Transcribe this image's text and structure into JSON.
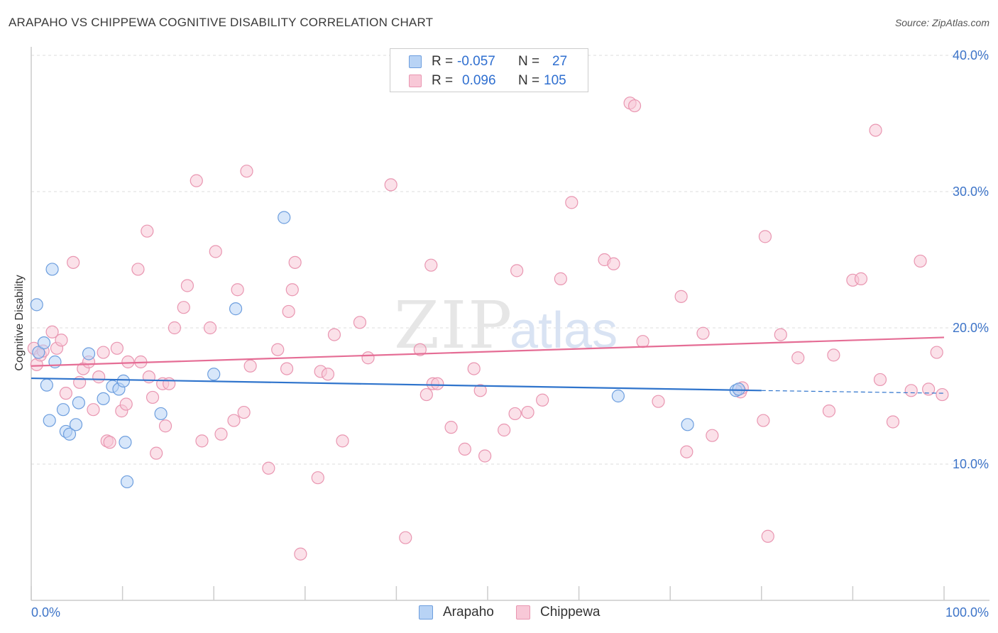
{
  "header": {
    "title": "ARAPAHO VS CHIPPEWA COGNITIVE DISABILITY CORRELATION CHART",
    "source": "Source: ZipAtlas.com"
  },
  "watermark": {
    "zip": "ZIP",
    "atlas": "atlas"
  },
  "legend": {
    "rows": [
      {
        "r_label": "R =",
        "r_value": "-0.057",
        "n_label": "N =",
        "n_value": "27"
      },
      {
        "r_label": "R =",
        "r_value": "0.096",
        "n_label": "N =",
        "n_value": "105"
      }
    ]
  },
  "bottom_legend": {
    "arapaho": "Arapaho",
    "chippewa": "Chippewa"
  },
  "colors": {
    "arapaho_fill": "#b8d3f5",
    "arapaho_stroke": "#6d9ede",
    "arapaho_line": "#2f74cc",
    "chippewa_fill": "#f8c8d7",
    "chippewa_stroke": "#e996b1",
    "chippewa_line": "#e56d95",
    "tick_label": "#3d74c8",
    "grid": "#dddddd"
  },
  "chart_data": {
    "type": "scatter",
    "title": "ARAPAHO VS CHIPPEWA COGNITIVE DISABILITY CORRELATION CHART",
    "xlabel": "",
    "ylabel": "Cognitive Disability",
    "xlim": [
      0,
      100
    ],
    "ylim": [
      0,
      40.5
    ],
    "x_tick_labels": [
      "0.0%",
      "100.0%"
    ],
    "y_ticks": [
      10,
      20,
      30,
      40
    ],
    "y_tick_labels": [
      "10.0%",
      "20.0%",
      "30.0%",
      "40.0%"
    ],
    "series": [
      {
        "name": "Arapaho",
        "R": -0.057,
        "N": 27,
        "trend": {
          "x": [
            0,
            80
          ],
          "y": [
            16.3,
            15.4
          ],
          "dashed_to_x": 100,
          "dashed_end_y": 15.2
        },
        "points": [
          [
            0.6,
            21.7
          ],
          [
            0.8,
            18.2
          ],
          [
            1.4,
            18.9
          ],
          [
            1.7,
            15.8
          ],
          [
            2.0,
            13.2
          ],
          [
            2.3,
            24.3
          ],
          [
            2.6,
            17.5
          ],
          [
            3.5,
            14.0
          ],
          [
            3.8,
            12.4
          ],
          [
            4.2,
            12.2
          ],
          [
            4.9,
            12.9
          ],
          [
            5.2,
            14.5
          ],
          [
            6.3,
            18.1
          ],
          [
            7.9,
            14.8
          ],
          [
            8.9,
            15.7
          ],
          [
            9.6,
            15.5
          ],
          [
            10.1,
            16.1
          ],
          [
            10.3,
            11.6
          ],
          [
            10.5,
            8.7
          ],
          [
            14.2,
            13.7
          ],
          [
            20.0,
            16.6
          ],
          [
            22.4,
            21.4
          ],
          [
            27.7,
            28.1
          ],
          [
            64.3,
            15.0
          ],
          [
            71.9,
            12.9
          ],
          [
            77.2,
            15.4
          ],
          [
            77.5,
            15.5
          ]
        ]
      },
      {
        "name": "Chippewa",
        "R": 0.096,
        "N": 105,
        "trend": {
          "x": [
            0,
            100
          ],
          "y": [
            17.2,
            19.3
          ]
        },
        "points": [
          [
            0.3,
            18.5
          ],
          [
            0.6,
            17.3
          ],
          [
            1.0,
            18.0
          ],
          [
            1.3,
            18.3
          ],
          [
            2.3,
            19.7
          ],
          [
            2.8,
            18.5
          ],
          [
            3.3,
            19.1
          ],
          [
            3.8,
            15.2
          ],
          [
            4.6,
            24.8
          ],
          [
            5.3,
            16.0
          ],
          [
            5.7,
            17.0
          ],
          [
            6.3,
            17.5
          ],
          [
            6.8,
            14.0
          ],
          [
            7.4,
            16.4
          ],
          [
            7.9,
            18.2
          ],
          [
            8.3,
            11.7
          ],
          [
            8.6,
            11.6
          ],
          [
            9.4,
            18.5
          ],
          [
            9.9,
            13.9
          ],
          [
            10.4,
            14.4
          ],
          [
            10.6,
            17.5
          ],
          [
            11.7,
            24.3
          ],
          [
            12.0,
            17.5
          ],
          [
            12.7,
            27.1
          ],
          [
            12.9,
            16.4
          ],
          [
            13.3,
            14.9
          ],
          [
            13.7,
            10.8
          ],
          [
            14.4,
            15.9
          ],
          [
            14.7,
            12.8
          ],
          [
            15.1,
            15.9
          ],
          [
            15.7,
            20.0
          ],
          [
            16.7,
            21.5
          ],
          [
            17.1,
            23.1
          ],
          [
            18.1,
            30.8
          ],
          [
            18.7,
            11.7
          ],
          [
            19.6,
            20.0
          ],
          [
            20.2,
            25.6
          ],
          [
            20.8,
            12.2
          ],
          [
            22.2,
            13.2
          ],
          [
            22.6,
            22.8
          ],
          [
            23.3,
            13.8
          ],
          [
            23.6,
            31.5
          ],
          [
            24.0,
            17.2
          ],
          [
            26.0,
            9.7
          ],
          [
            27.0,
            18.4
          ],
          [
            28.0,
            17.0
          ],
          [
            28.2,
            21.2
          ],
          [
            28.6,
            22.8
          ],
          [
            28.9,
            24.8
          ],
          [
            29.5,
            3.4
          ],
          [
            31.4,
            9.0
          ],
          [
            31.7,
            16.8
          ],
          [
            32.5,
            16.6
          ],
          [
            33.2,
            19.5
          ],
          [
            34.1,
            11.7
          ],
          [
            36.0,
            20.4
          ],
          [
            36.9,
            17.8
          ],
          [
            39.4,
            30.5
          ],
          [
            41.0,
            4.6
          ],
          [
            42.6,
            18.4
          ],
          [
            43.3,
            15.1
          ],
          [
            43.8,
            24.6
          ],
          [
            44.0,
            15.9
          ],
          [
            44.5,
            15.9
          ],
          [
            46.0,
            12.7
          ],
          [
            47.5,
            11.1
          ],
          [
            48.5,
            17.0
          ],
          [
            49.2,
            15.4
          ],
          [
            49.7,
            10.6
          ],
          [
            51.8,
            12.5
          ],
          [
            53.0,
            13.7
          ],
          [
            53.2,
            24.2
          ],
          [
            54.4,
            13.8
          ],
          [
            56.0,
            14.7
          ],
          [
            58.0,
            23.6
          ],
          [
            59.2,
            29.2
          ],
          [
            62.8,
            25.0
          ],
          [
            63.8,
            24.7
          ],
          [
            65.6,
            36.5
          ],
          [
            66.1,
            36.3
          ],
          [
            67.0,
            19.0
          ],
          [
            68.7,
            14.6
          ],
          [
            71.2,
            22.3
          ],
          [
            71.8,
            10.9
          ],
          [
            73.6,
            19.6
          ],
          [
            74.6,
            12.1
          ],
          [
            77.7,
            15.3
          ],
          [
            80.2,
            13.2
          ],
          [
            80.4,
            26.7
          ],
          [
            80.7,
            4.7
          ],
          [
            82.1,
            19.5
          ],
          [
            84.0,
            17.8
          ],
          [
            87.4,
            13.9
          ],
          [
            87.9,
            18.0
          ],
          [
            90.0,
            23.5
          ],
          [
            90.9,
            23.6
          ],
          [
            92.5,
            34.5
          ],
          [
            93.0,
            16.2
          ],
          [
            94.4,
            13.1
          ],
          [
            96.4,
            15.4
          ],
          [
            97.4,
            24.9
          ],
          [
            98.3,
            15.5
          ],
          [
            99.2,
            18.2
          ],
          [
            99.8,
            15.1
          ],
          [
            77.9,
            15.6
          ]
        ]
      }
    ]
  }
}
